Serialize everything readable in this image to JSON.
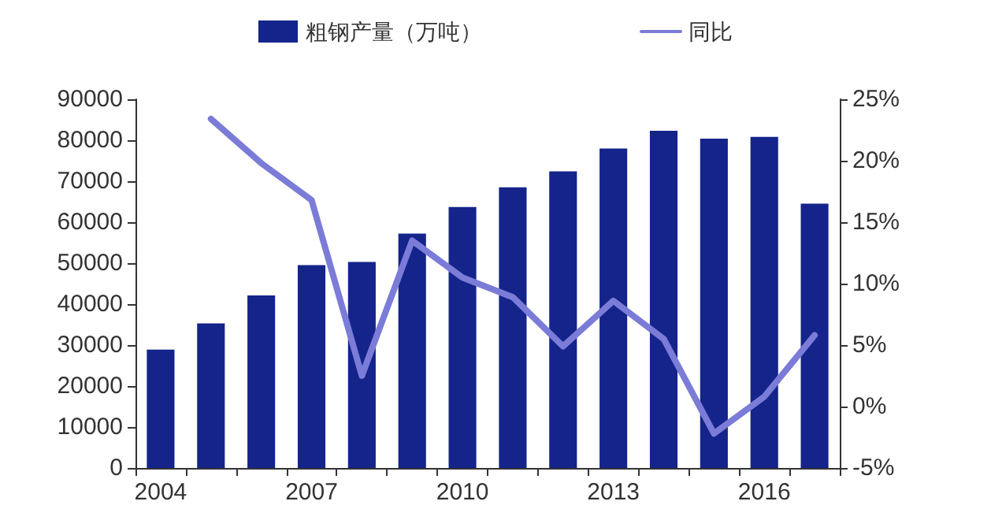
{
  "chart_data": {
    "type": "bar",
    "categories": [
      "2004",
      null,
      null,
      "2007",
      null,
      null,
      "2010",
      null,
      null,
      "2013",
      null,
      null,
      "2016",
      null
    ],
    "series": [
      {
        "name": "粗钢产量（万吨）",
        "color": "#14248a",
        "values": [
          28900,
          35300,
          42100,
          49500,
          50300,
          57200,
          63700,
          68500,
          72400,
          78000,
          82300,
          80400,
          80800,
          64500
        ]
      },
      {
        "name": "同比",
        "type": "line",
        "axis": "y2",
        "color": "#7b7bd8",
        "values": [
          null,
          23.4,
          19.8,
          16.8,
          2.5,
          13.5,
          10.5,
          8.9,
          4.9,
          8.6,
          5.5,
          -2.2,
          0.8,
          5.8
        ]
      }
    ],
    "ylim": [
      0,
      90000
    ],
    "yticks": [
      0,
      10000,
      20000,
      30000,
      40000,
      50000,
      60000,
      70000,
      80000,
      90000
    ],
    "y2lim": [
      -5,
      25
    ],
    "y2ticks": [
      {
        "value": -5,
        "label": "-5%"
      },
      {
        "value": 0,
        "label": "0%"
      },
      {
        "value": 5,
        "label": "5%"
      },
      {
        "value": 10,
        "label": "10%"
      },
      {
        "value": 15,
        "label": "15%"
      },
      {
        "value": 20,
        "label": "20%"
      },
      {
        "value": 25,
        "label": "25%"
      }
    ],
    "grid": false,
    "legend": "top",
    "marker": "none"
  }
}
